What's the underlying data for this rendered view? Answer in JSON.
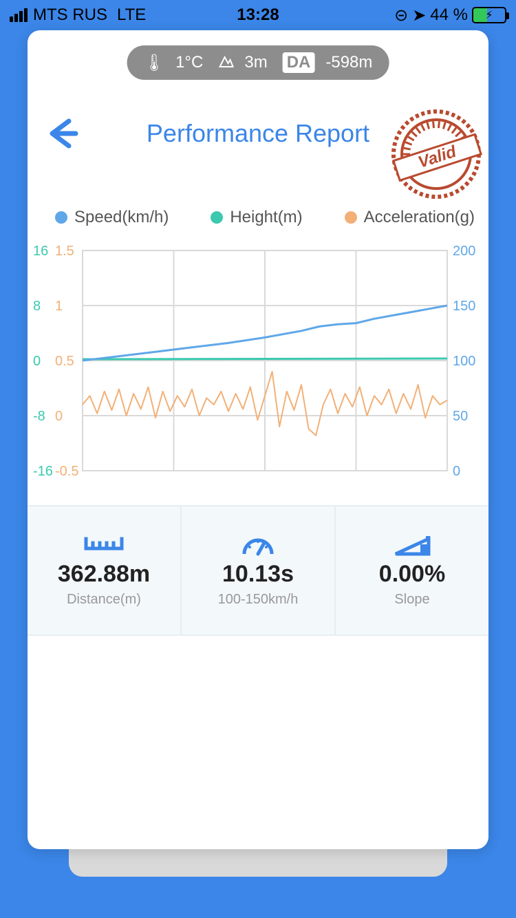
{
  "status": {
    "carrier": "MTS RUS",
    "network": "LTE",
    "time": "13:28",
    "battery_pct": "44 %",
    "battery_fill_pct": 44
  },
  "pill": {
    "temp": "1°C",
    "altitude": "3m",
    "da_label": "DA",
    "da_value": "-598m"
  },
  "header": {
    "title": "Performance Report",
    "stamp_text": "Valid",
    "stamp_color": "#b94a2f"
  },
  "legend": {
    "items": [
      {
        "label": "Speed(km/h)",
        "color": "#5fa7e8"
      },
      {
        "label": "Height(m)",
        "color": "#3bc9b0"
      },
      {
        "label": "Acceleration(g)",
        "color": "#f2b077"
      }
    ]
  },
  "chart": {
    "background": "#ffffff",
    "grid_color": "#d9d9d9",
    "axis_left1": {
      "color": "#3bc9b0",
      "ticks": [
        "16",
        "8",
        "0",
        "-8",
        "-16"
      ]
    },
    "axis_left2": {
      "color": "#f2b077",
      "ticks": [
        "1.5",
        "1",
        "0.5",
        "0",
        "-0.5"
      ]
    },
    "axis_right": {
      "color": "#5fa7e8",
      "ticks": [
        "200",
        "150",
        "100",
        "50",
        "0"
      ]
    },
    "grid_rows": 5,
    "grid_cols": 5,
    "series_speed": {
      "color": "#5fa7e8",
      "width": 3,
      "points": [
        [
          0,
          100
        ],
        [
          10,
          104
        ],
        [
          20,
          108
        ],
        [
          30,
          112
        ],
        [
          40,
          116
        ],
        [
          50,
          121
        ],
        [
          60,
          127
        ],
        [
          65,
          131
        ],
        [
          70,
          133
        ],
        [
          75,
          134
        ],
        [
          80,
          138
        ],
        [
          85,
          141
        ],
        [
          90,
          144
        ],
        [
          95,
          147
        ],
        [
          100,
          150
        ]
      ],
      "y_range": [
        0,
        200
      ]
    },
    "series_height": {
      "color": "#3bc9b0",
      "width": 3,
      "points": [
        [
          0,
          0.2
        ],
        [
          100,
          0.3
        ]
      ],
      "y_range": [
        -16,
        16
      ]
    },
    "series_accel": {
      "color": "#f2b077",
      "width": 2,
      "y_range": [
        -0.5,
        1.5
      ],
      "points": [
        [
          0,
          0.1
        ],
        [
          2,
          0.18
        ],
        [
          4,
          0.02
        ],
        [
          6,
          0.22
        ],
        [
          8,
          0.05
        ],
        [
          10,
          0.24
        ],
        [
          12,
          0.0
        ],
        [
          14,
          0.2
        ],
        [
          16,
          0.06
        ],
        [
          18,
          0.26
        ],
        [
          20,
          -0.02
        ],
        [
          22,
          0.22
        ],
        [
          24,
          0.04
        ],
        [
          26,
          0.18
        ],
        [
          28,
          0.08
        ],
        [
          30,
          0.24
        ],
        [
          32,
          0.0
        ],
        [
          34,
          0.16
        ],
        [
          36,
          0.1
        ],
        [
          38,
          0.22
        ],
        [
          40,
          0.04
        ],
        [
          42,
          0.2
        ],
        [
          44,
          0.06
        ],
        [
          46,
          0.26
        ],
        [
          48,
          -0.04
        ],
        [
          50,
          0.18
        ],
        [
          52,
          0.4
        ],
        [
          54,
          -0.1
        ],
        [
          56,
          0.22
        ],
        [
          58,
          0.05
        ],
        [
          60,
          0.28
        ],
        [
          62,
          -0.12
        ],
        [
          64,
          -0.18
        ],
        [
          66,
          0.1
        ],
        [
          68,
          0.24
        ],
        [
          70,
          0.02
        ],
        [
          72,
          0.2
        ],
        [
          74,
          0.08
        ],
        [
          76,
          0.26
        ],
        [
          78,
          0.0
        ],
        [
          80,
          0.18
        ],
        [
          82,
          0.1
        ],
        [
          84,
          0.24
        ],
        [
          86,
          0.02
        ],
        [
          88,
          0.2
        ],
        [
          90,
          0.06
        ],
        [
          92,
          0.28
        ],
        [
          94,
          -0.02
        ],
        [
          96,
          0.18
        ],
        [
          98,
          0.1
        ],
        [
          100,
          0.14
        ]
      ]
    }
  },
  "metrics": [
    {
      "icon": "ruler",
      "value": "362.88m",
      "label": "Distance(m)"
    },
    {
      "icon": "gauge",
      "value": "10.13s",
      "label": "100-150km/h"
    },
    {
      "icon": "slope",
      "value": "0.00%",
      "label": "Slope"
    }
  ],
  "colors": {
    "accent": "#3b86e8",
    "pill_bg": "#8d8d8d"
  }
}
